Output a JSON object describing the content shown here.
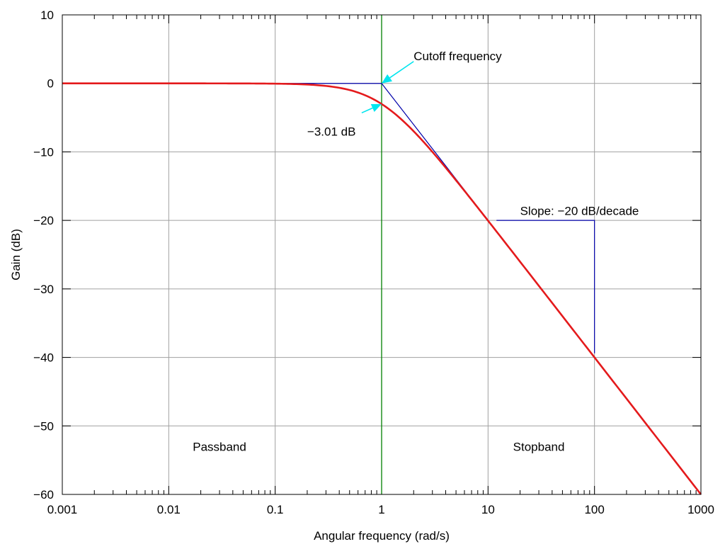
{
  "chart_data": {
    "type": "line",
    "title": "",
    "xlabel": "Angular frequency (rad/s)",
    "ylabel": "Gain (dB)",
    "xscale": "log",
    "xlim": [
      0.001,
      1000
    ],
    "ylim": [
      -60,
      10
    ],
    "grid": true,
    "x_ticks": [
      "0.001",
      "0.01",
      "0.1",
      "1",
      "10",
      "100",
      "1000"
    ],
    "y_ticks": [
      "10",
      "0",
      "−10",
      "−20",
      "−30",
      "−40",
      "−50",
      "−60"
    ],
    "series": [
      {
        "role": "gain-response",
        "color": "#e41a1c",
        "x": [
          0.001,
          0.01,
          0.03,
          0.1,
          0.2,
          0.3,
          0.5,
          0.7,
          1,
          1.5,
          2,
          3,
          5,
          7,
          10,
          20,
          50,
          100,
          200,
          500,
          1000
        ],
        "y": [
          0,
          0,
          0,
          -0.04,
          -0.17,
          -0.37,
          -0.97,
          -1.73,
          -3.01,
          -5.12,
          -6.99,
          -10,
          -14.15,
          -17.0,
          -20.04,
          -26.02,
          -33.98,
          -40,
          -46.02,
          -53.98,
          -60
        ]
      },
      {
        "role": "asymptote",
        "color": "#0000aa",
        "x": [
          0.001,
          1,
          10
        ],
        "y": [
          0,
          0,
          -20
        ]
      }
    ],
    "cutoff_line": {
      "x": 1,
      "color": "#008000"
    },
    "slope_triangle": {
      "x": [
        12,
        100,
        100
      ],
      "y": [
        -20,
        -20,
        -39.4
      ],
      "color": "#0000aa"
    },
    "annotations": [
      {
        "text": "Cutoff frequency",
        "x": 2,
        "y": 4
      },
      {
        "text": "−3.01 dB",
        "x": 0.2,
        "y": -7
      },
      {
        "text": "Slope: −20 dB/decade",
        "x": 20,
        "y": -18.6
      },
      {
        "text": "Passband",
        "x": 0.03,
        "y": -53
      },
      {
        "text": "Stopband",
        "x": 30,
        "y": -53
      }
    ],
    "arrows": [
      {
        "from": [
          2,
          3.2
        ],
        "to": [
          1,
          0
        ],
        "color": "#00e5ee"
      },
      {
        "from": [
          0.65,
          -4.3
        ],
        "to": [
          1,
          -3.01
        ],
        "color": "#00e5ee"
      }
    ]
  }
}
